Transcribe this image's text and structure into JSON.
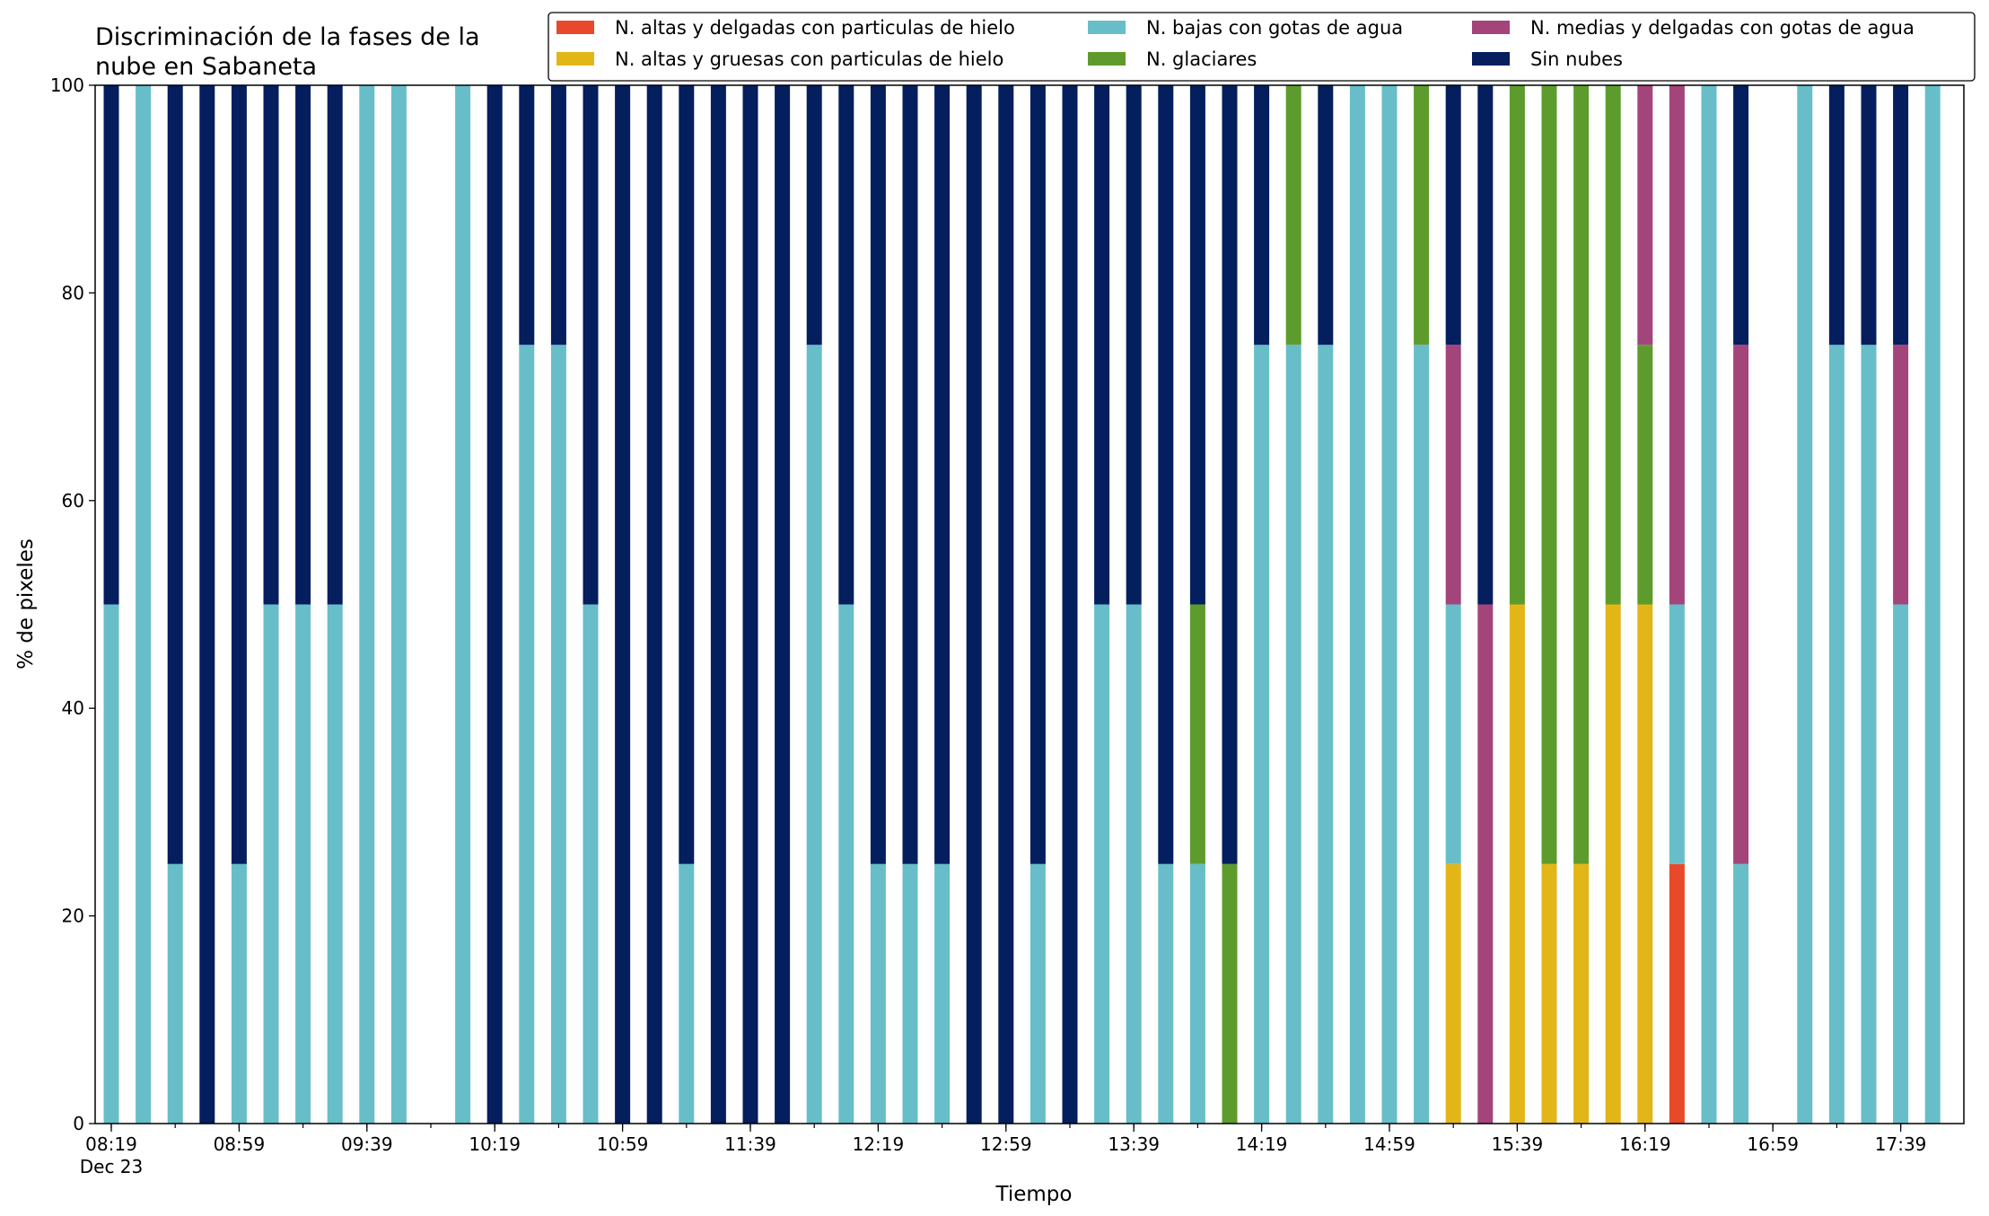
{
  "chart_data": {
    "type": "bar",
    "stacked": true,
    "title_lines": [
      "Discriminación de la fases de la",
      "nube en Sabaneta"
    ],
    "xlabel": "Tiempo",
    "ylabel": "% de pixeles",
    "ylim": [
      0,
      100
    ],
    "yticks": [
      0,
      20,
      40,
      60,
      80,
      100
    ],
    "grid": false,
    "legend_position": "top-right",
    "x_start": "08:19",
    "x_step_minutes": 10,
    "x_date_label": "Dec 23",
    "x_tick_labels": [
      "08:19",
      "08:59",
      "09:39",
      "10:19",
      "10:59",
      "11:39",
      "12:19",
      "12:59",
      "13:39",
      "14:19",
      "14:59",
      "15:39",
      "16:19",
      "16:59",
      "17:39"
    ],
    "x": [
      "08:19",
      "08:29",
      "08:39",
      "08:49",
      "08:59",
      "09:09",
      "09:19",
      "09:29",
      "09:39",
      "09:49",
      "09:59",
      "10:09",
      "10:19",
      "10:29",
      "10:39",
      "10:49",
      "10:59",
      "11:09",
      "11:19",
      "11:29",
      "11:39",
      "11:49",
      "11:59",
      "12:09",
      "12:19",
      "12:29",
      "12:39",
      "12:49",
      "12:59",
      "13:09",
      "13:19",
      "13:29",
      "13:39",
      "13:49",
      "13:59",
      "14:09",
      "14:19",
      "14:29",
      "14:39",
      "14:49",
      "14:59",
      "15:09",
      "15:19",
      "15:29",
      "15:39",
      "15:49",
      "15:59",
      "16:09",
      "16:19",
      "16:29",
      "16:39",
      "16:49",
      "16:59",
      "17:09",
      "17:19",
      "17:29",
      "17:39",
      "17:49"
    ],
    "series": [
      {
        "name": "N. altas y delgadas con particulas de hielo",
        "color": "#e8492a",
        "values": [
          0,
          0,
          0,
          0,
          0,
          0,
          0,
          0,
          0,
          0,
          0,
          0,
          0,
          0,
          0,
          0,
          0,
          0,
          0,
          0,
          0,
          0,
          0,
          0,
          0,
          0,
          0,
          0,
          0,
          0,
          0,
          0,
          0,
          0,
          0,
          0,
          0,
          0,
          0,
          0,
          0,
          0,
          0,
          0,
          0,
          0,
          0,
          0,
          0,
          25,
          0,
          0,
          null,
          0,
          0,
          0,
          0,
          0
        ]
      },
      {
        "name": "N. altas y gruesas con particulas de hielo",
        "color": "#e3b618",
        "values": [
          0,
          0,
          0,
          0,
          0,
          0,
          0,
          0,
          0,
          0,
          0,
          0,
          0,
          0,
          0,
          0,
          0,
          0,
          0,
          0,
          0,
          0,
          0,
          0,
          0,
          0,
          0,
          0,
          0,
          0,
          0,
          0,
          0,
          0,
          0,
          0,
          0,
          0,
          0,
          0,
          0,
          0,
          25,
          0,
          50,
          25,
          25,
          50,
          50,
          0,
          0,
          0,
          null,
          0,
          0,
          0,
          0,
          0
        ]
      },
      {
        "name": "N. bajas con gotas de agua",
        "color": "#67bec8",
        "values": [
          50,
          100,
          25,
          0,
          25,
          50,
          50,
          50,
          100,
          100,
          null,
          100,
          0,
          75,
          75,
          50,
          0,
          0,
          25,
          0,
          0,
          0,
          75,
          50,
          25,
          25,
          25,
          0,
          0,
          25,
          0,
          50,
          50,
          25,
          25,
          0,
          75,
          75,
          75,
          100,
          100,
          75,
          25,
          0,
          0,
          0,
          0,
          0,
          0,
          25,
          100,
          25,
          null,
          100,
          75,
          75,
          50,
          100
        ]
      },
      {
        "name": "N. glaciares",
        "color": "#5d9c2c",
        "values": [
          0,
          0,
          0,
          0,
          0,
          0,
          0,
          0,
          0,
          0,
          0,
          0,
          0,
          0,
          0,
          0,
          0,
          0,
          0,
          0,
          0,
          0,
          0,
          0,
          0,
          0,
          0,
          0,
          0,
          0,
          0,
          0,
          0,
          0,
          25,
          25,
          0,
          25,
          0,
          0,
          0,
          25,
          0,
          0,
          50,
          75,
          75,
          50,
          25,
          0,
          0,
          0,
          null,
          0,
          0,
          0,
          0,
          0
        ]
      },
      {
        "name": "N. medias y delgadas con gotas de agua",
        "color": "#a3457b",
        "values": [
          0,
          0,
          0,
          0,
          0,
          0,
          0,
          0,
          0,
          0,
          0,
          0,
          0,
          0,
          0,
          0,
          0,
          0,
          0,
          0,
          0,
          0,
          0,
          0,
          0,
          0,
          0,
          0,
          0,
          0,
          0,
          0,
          0,
          0,
          0,
          0,
          0,
          0,
          0,
          0,
          0,
          0,
          25,
          50,
          0,
          0,
          0,
          0,
          25,
          50,
          0,
          50,
          null,
          0,
          0,
          0,
          25,
          0
        ]
      },
      {
        "name": "Sin nubes",
        "color": "#041e5e",
        "values": [
          50,
          0,
          75,
          100,
          75,
          50,
          50,
          50,
          0,
          0,
          null,
          0,
          100,
          25,
          25,
          50,
          100,
          100,
          75,
          100,
          100,
          100,
          25,
          50,
          75,
          75,
          75,
          100,
          100,
          75,
          100,
          50,
          50,
          75,
          50,
          75,
          25,
          0,
          25,
          0,
          0,
          0,
          25,
          50,
          0,
          0,
          0,
          0,
          0,
          0,
          0,
          25,
          null,
          0,
          25,
          25,
          25,
          0
        ]
      }
    ]
  }
}
